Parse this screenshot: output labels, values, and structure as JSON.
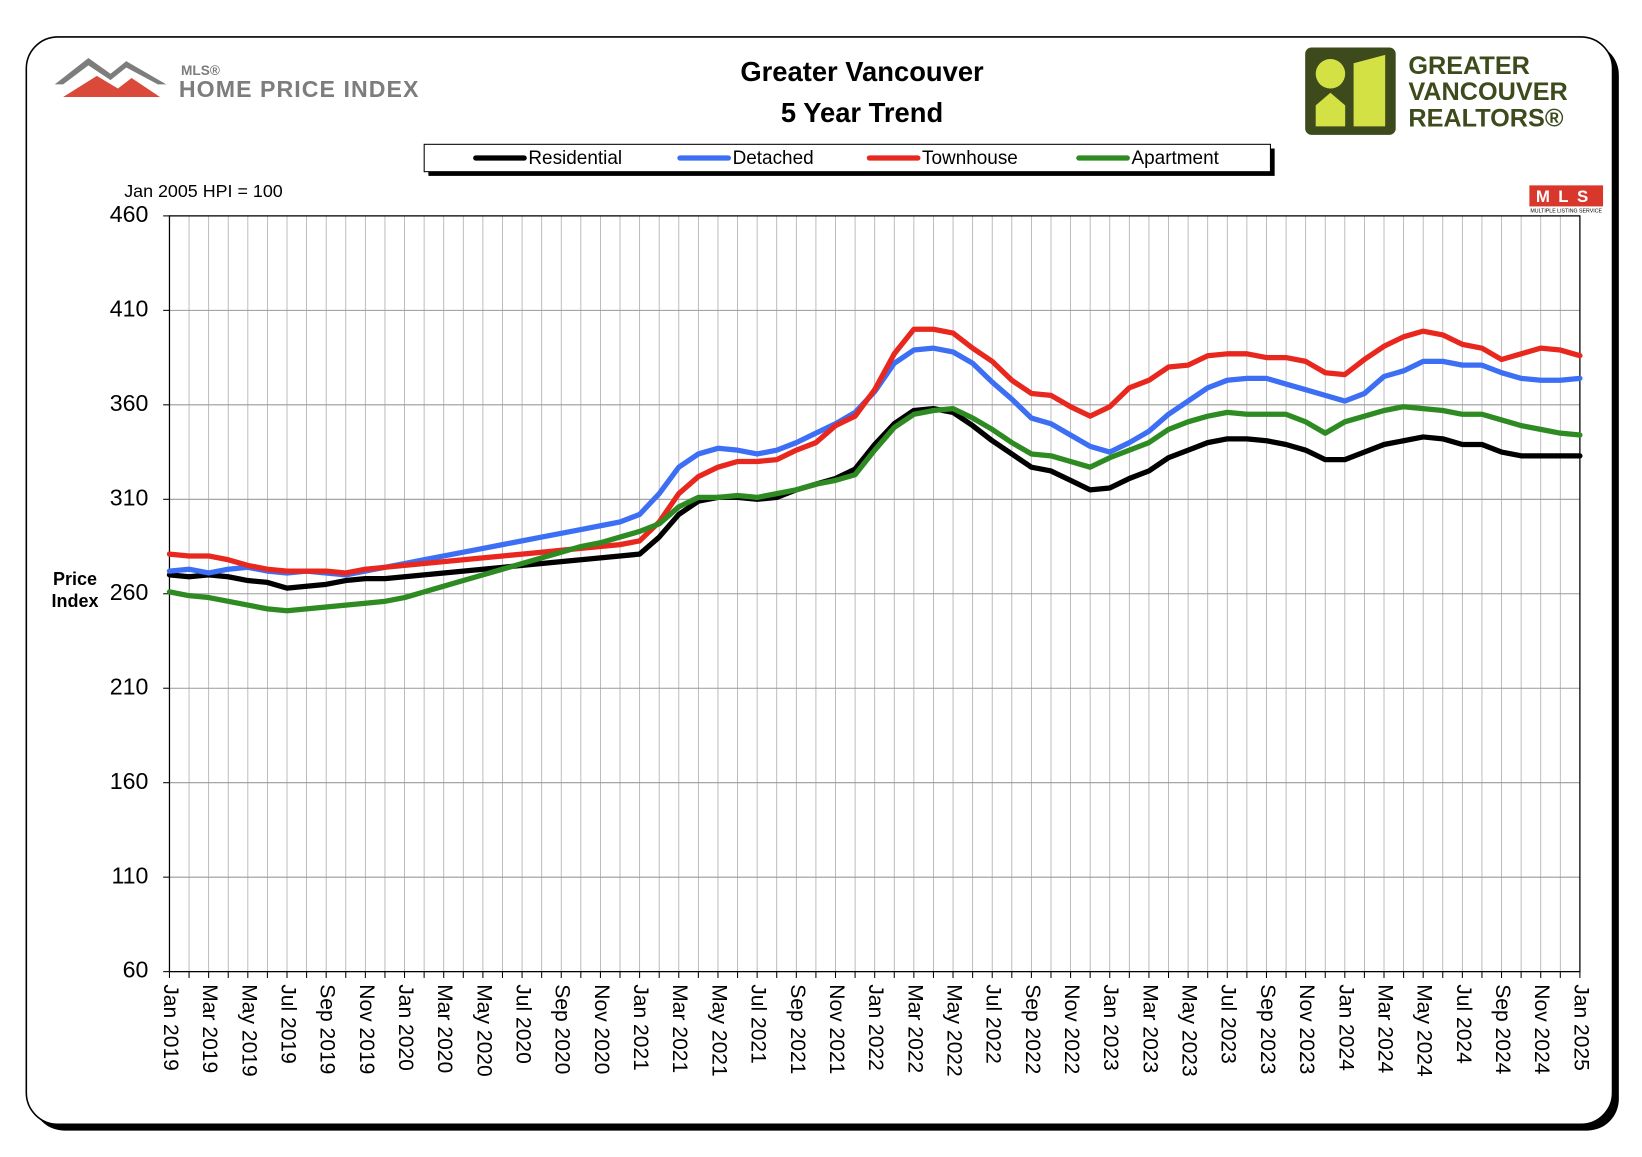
{
  "chart_data": {
    "type": "line",
    "title": "Greater Vancouver",
    "subtitle": "5 Year Trend",
    "annotation": "Jan 2005 HPI = 100",
    "ylabel": "Price Index",
    "logos": {
      "mls_hpi_small": "MLS®",
      "mls_hpi": "HOME PRICE INDEX",
      "gvr": [
        "GREATER",
        "VANCOUVER",
        "REALTORS®"
      ],
      "mls": "MLS",
      "mls_caption": "MULTIPLE LISTING SERVICE"
    },
    "ylim": [
      60,
      460
    ],
    "yticks": [
      60,
      110,
      160,
      210,
      260,
      310,
      360,
      410,
      460
    ],
    "grid": true,
    "legend": "top",
    "categories": [
      "Jan 2019",
      null,
      "Mar 2019",
      null,
      "May 2019",
      null,
      "Jul 2019",
      null,
      "Sep 2019",
      null,
      "Nov 2019",
      null,
      "Jan 2020",
      null,
      "Mar 2020",
      null,
      "May 2020",
      null,
      "Jul 2020",
      null,
      "Sep 2020",
      null,
      "Nov 2020",
      null,
      "Jan 2021",
      null,
      "Mar 2021",
      null,
      "May 2021",
      null,
      "Jul 2021",
      null,
      "Sep 2021",
      null,
      "Nov 2021",
      null,
      "Jan 2022",
      null,
      "Mar 2022",
      null,
      "May 2022",
      null,
      "Jul 2022",
      null,
      "Sep 2022",
      null,
      "Nov 2022",
      null,
      "Jan 2023",
      null,
      "Mar 2023",
      null,
      "May 2023",
      null,
      "Jul 2023",
      null,
      "Sep 2023",
      null,
      "Nov 2023",
      null,
      "Jan 2024",
      null,
      "Mar 2024",
      null,
      "May 2024",
      null,
      "Jul 2024",
      null,
      "Sep 2024",
      null,
      "Nov 2024",
      null,
      "Jan 2025"
    ],
    "series": [
      {
        "name": "Residential",
        "color": "#000000",
        "values": [
          270,
          269,
          270,
          269,
          267,
          266,
          263,
          264,
          265,
          267,
          268,
          268,
          269,
          270,
          271,
          272,
          273,
          274,
          275,
          276,
          277,
          278,
          279,
          280,
          281,
          290,
          302,
          309,
          311,
          311,
          310,
          311,
          315,
          318,
          321,
          326,
          339,
          350,
          357,
          358,
          356,
          349,
          341,
          334,
          327,
          325,
          320,
          315,
          316,
          321,
          325,
          332,
          336,
          340,
          342,
          342,
          341,
          339,
          336,
          331,
          331,
          335,
          339,
          341,
          343,
          342,
          339,
          339,
          335,
          333,
          333,
          333,
          333
        ]
      },
      {
        "name": "Detached",
        "color": "#3d6ff5",
        "values": [
          272,
          273,
          271,
          273,
          274,
          272,
          271,
          272,
          271,
          270,
          272,
          274,
          276,
          278,
          280,
          282,
          284,
          286,
          288,
          290,
          292,
          294,
          296,
          298,
          302,
          313,
          327,
          334,
          337,
          336,
          334,
          336,
          340,
          345,
          350,
          356,
          367,
          382,
          389,
          390,
          388,
          382,
          372,
          363,
          353,
          350,
          344,
          338,
          335,
          340,
          346,
          355,
          362,
          369,
          373,
          374,
          374,
          371,
          368,
          365,
          362,
          366,
          375,
          378,
          383,
          383,
          381,
          381,
          377,
          374,
          373,
          373,
          374
        ]
      },
      {
        "name": "Townhouse",
        "color": "#e8281e",
        "values": [
          281,
          280,
          280,
          278,
          275,
          273,
          272,
          272,
          272,
          271,
          273,
          274,
          275,
          276,
          277,
          278,
          279,
          280,
          281,
          282,
          283,
          284,
          285,
          286,
          288,
          298,
          313,
          322,
          327,
          330,
          330,
          331,
          336,
          340,
          349,
          354,
          368,
          387,
          400,
          400,
          398,
          390,
          383,
          373,
          366,
          365,
          359,
          354,
          359,
          369,
          373,
          380,
          381,
          386,
          387,
          387,
          385,
          385,
          383,
          377,
          376,
          384,
          391,
          396,
          399,
          397,
          392,
          390,
          384,
          387,
          390,
          389,
          386
        ]
      },
      {
        "name": "Apartment",
        "color": "#2e8b22",
        "values": [
          261,
          259,
          258,
          256,
          254,
          252,
          251,
          252,
          253,
          254,
          255,
          256,
          258,
          261,
          264,
          267,
          270,
          273,
          276,
          279,
          282,
          285,
          287,
          290,
          293,
          297,
          306,
          311,
          311,
          312,
          311,
          313,
          315,
          318,
          320,
          323,
          336,
          348,
          355,
          357,
          358,
          353,
          347,
          340,
          334,
          333,
          330,
          327,
          332,
          336,
          340,
          347,
          351,
          354,
          356,
          355,
          355,
          355,
          351,
          345,
          351,
          354,
          357,
          359,
          358,
          357,
          355,
          355,
          352,
          349,
          347,
          345,
          344
        ]
      }
    ]
  }
}
